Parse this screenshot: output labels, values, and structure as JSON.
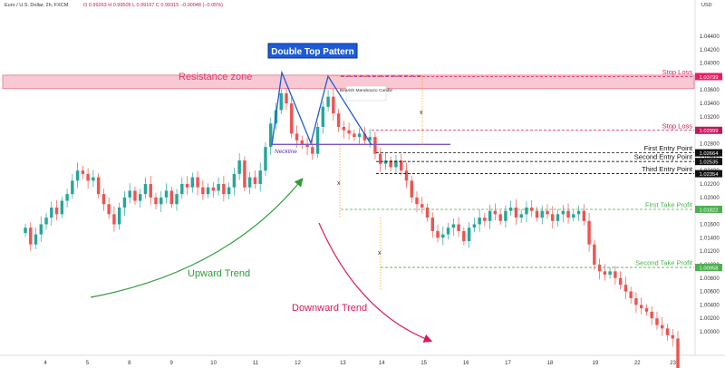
{
  "header": {
    "symbol": "Euro / U.S. Dollar, 2h, FXCM",
    "ohlc": "O 0.99263  H 0.99505  L 0.99197  C 0.99315 −0.00048 (−0.05%)",
    "currency": "USD"
  },
  "chart_data": {
    "type": "candlestick",
    "title": "Double Top Pattern",
    "price_axis": {
      "ylim": [
        0.9965,
        1.0475
      ],
      "ticks": [
        "1.04400",
        "1.04200",
        "1.04000",
        "1.03800",
        "1.03600",
        "1.03400",
        "1.03200",
        "1.03000",
        "1.02800",
        "1.02600",
        "1.02400",
        "1.02200",
        "1.02000",
        "1.01800",
        "1.01600",
        "1.01400",
        "1.01200",
        "1.01000",
        "1.00800",
        "1.00600",
        "1.00400",
        "1.00200",
        "1.00000"
      ],
      "tick_values": [
        1.044,
        1.042,
        1.04,
        1.038,
        1.036,
        1.034,
        1.032,
        1.03,
        1.028,
        1.026,
        1.024,
        1.022,
        1.02,
        1.018,
        1.016,
        1.014,
        1.012,
        1.01,
        1.008,
        1.006,
        1.004,
        1.002,
        1.0
      ]
    },
    "time_axis": {
      "labels": [
        "4",
        "5",
        "8",
        "9",
        "10",
        "11",
        "12",
        "13",
        "14",
        "15",
        "16",
        "17",
        "18",
        "19",
        "22",
        "23"
      ],
      "positions": [
        0,
        6.5,
        13,
        19.5,
        26,
        32.5,
        39,
        46,
        52,
        58.5,
        65,
        71.5,
        78,
        85,
        91.5,
        97
      ]
    },
    "closes": [
      1.0155,
      1.013,
      1.0145,
      1.016,
      1.017,
      1.0185,
      1.0175,
      1.0195,
      1.0205,
      1.0225,
      1.024,
      1.0235,
      1.0225,
      1.023,
      1.0205,
      1.019,
      1.0175,
      1.016,
      1.0185,
      1.02,
      1.021,
      1.0195,
      1.0205,
      1.022,
      1.02,
      1.019,
      1.02,
      1.021,
      1.019,
      1.0205,
      1.022,
      1.0215,
      1.023,
      1.0215,
      1.0205,
      1.0215,
      1.021,
      1.022,
      1.0205,
      1.0215,
      1.0235,
      1.0255,
      1.0215,
      1.023,
      1.022,
      1.024,
      1.0275,
      1.031,
      1.033,
      1.0355,
      1.034,
      1.0295,
      1.0285,
      1.028,
      1.0275,
      1.0265,
      1.0305,
      1.0335,
      1.035,
      1.0325,
      1.0305,
      1.03,
      1.0295,
      1.029,
      1.0295,
      1.0285,
      1.029,
      1.0265,
      1.025,
      1.0255,
      1.0245,
      1.0255,
      1.024,
      1.0225,
      1.02,
      1.019,
      1.0185,
      1.017,
      1.015,
      1.014,
      1.0145,
      1.0155,
      1.016,
      1.015,
      1.0135,
      1.0155,
      1.016,
      1.017,
      1.0165,
      1.018,
      1.0175,
      1.0165,
      1.018,
      1.0185,
      1.017,
      1.0175,
      1.0185,
      1.018,
      1.017,
      1.018,
      1.0175,
      1.0165,
      1.0175,
      1.018,
      1.017,
      1.0175,
      1.018,
      1.0165,
      1.013,
      1.01,
      1.009,
      1.0085,
      1.009,
      1.008,
      1.007,
      1.006,
      1.005,
      1.004,
      1.0035,
      1.003,
      1.002,
      1.001,
      1.0005,
      0.9995,
      0.999,
      0.9932
    ],
    "levels": [
      {
        "name": "Stop Loss",
        "price": "1.03799",
        "value": 1.03799,
        "color": "#e91e63",
        "style": "dash"
      },
      {
        "name": "Stop Loss",
        "price": "1.02999",
        "value": 1.02999,
        "color": "#c2185b",
        "style": "dash"
      },
      {
        "name": "First Entry Point",
        "price": "1.02664",
        "value": 1.02664,
        "color": "#111111",
        "style": "dash"
      },
      {
        "name": "Second Entry Point",
        "price": "1.02535",
        "value": 1.02535,
        "color": "#111111",
        "style": "dash"
      },
      {
        "name": "Third Entry Point",
        "price": "1.02354",
        "value": 1.02354,
        "color": "#111111",
        "style": "dash"
      },
      {
        "name": "First Take Profit",
        "price": "1.01822",
        "value": 1.01822,
        "color": "#4caf50",
        "style": "dash"
      },
      {
        "name": "Second Take Profit",
        "price": "1.00958",
        "value": 1.00958,
        "color": "#4caf50",
        "style": "dash"
      }
    ],
    "resistance_zone": {
      "label": "Resistance zone",
      "top": 1.0382,
      "bottom": 1.0362
    },
    "neckline": {
      "label": "Neckline",
      "value": 1.0279
    },
    "annotations": {
      "candle_note": "Bearish Marabouzo Candle",
      "measure_mark": "x",
      "upward": "Upward Trend",
      "downward": "Downward Trend"
    },
    "colors": {
      "up": "#26a69a",
      "down": "#ef5350"
    }
  }
}
